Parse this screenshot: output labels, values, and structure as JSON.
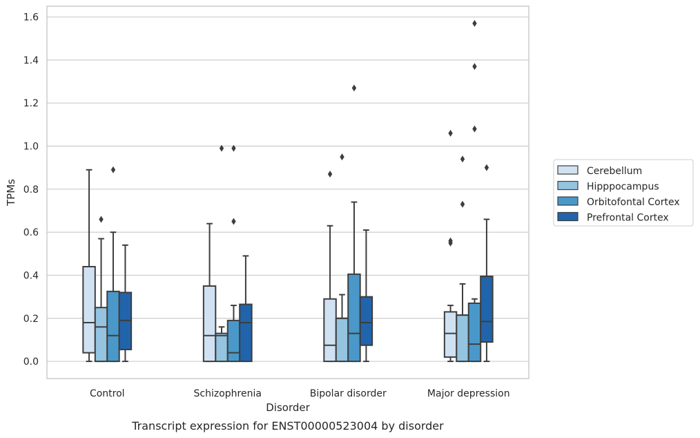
{
  "caption": "Transcript expression for ENST00000523004 by disorder",
  "chart_data": {
    "type": "box",
    "title": "",
    "xlabel": "Disorder",
    "ylabel": "TPMs",
    "ylim": [
      -0.08,
      1.65
    ],
    "yticks": [
      0.0,
      0.2,
      0.4,
      0.6,
      0.8,
      1.0,
      1.2,
      1.4,
      1.6
    ],
    "ytick_labels": [
      "0.0",
      "0.2",
      "0.4",
      "0.6",
      "0.8",
      "1.0",
      "1.2",
      "1.4",
      "1.6"
    ],
    "grid": "horizontal",
    "legend_position": "right",
    "categories": [
      "Control",
      "Schizophrenia",
      "Bipolar disorder",
      "Major depression"
    ],
    "series": [
      {
        "name": "Cerebellum",
        "color": "#d0e1f2",
        "boxes": [
          {
            "whislo": 0.0,
            "q1": 0.04,
            "med": 0.18,
            "q3": 0.44,
            "whishi": 0.89,
            "fliers": []
          },
          {
            "whislo": 0.0,
            "q1": 0.0,
            "med": 0.12,
            "q3": 0.35,
            "whishi": 0.64,
            "fliers": []
          },
          {
            "whislo": 0.0,
            "q1": 0.0,
            "med": 0.075,
            "q3": 0.29,
            "whishi": 0.63,
            "fliers": [
              0.87
            ]
          },
          {
            "whislo": 0.0,
            "q1": 0.02,
            "med": 0.13,
            "q3": 0.23,
            "whishi": 0.26,
            "fliers": [
              0.55,
              0.56,
              1.06
            ]
          }
        ]
      },
      {
        "name": "Hipppocampus",
        "color": "#94c4df",
        "boxes": [
          {
            "whislo": 0.0,
            "q1": 0.0,
            "med": 0.16,
            "q3": 0.25,
            "whishi": 0.57,
            "fliers": [
              0.66
            ]
          },
          {
            "whislo": 0.0,
            "q1": 0.0,
            "med": 0.12,
            "q3": 0.13,
            "whishi": 0.16,
            "fliers": [
              0.99
            ]
          },
          {
            "whislo": 0.0,
            "q1": 0.0,
            "med": 0.2,
            "q3": 0.2,
            "whishi": 0.31,
            "fliers": [
              0.95
            ]
          },
          {
            "whislo": 0.0,
            "q1": 0.0,
            "med": 0.215,
            "q3": 0.215,
            "whishi": 0.36,
            "fliers": [
              0.73,
              0.94
            ]
          }
        ]
      },
      {
        "name": "Orbitofontal Cortex",
        "color": "#4a98c9",
        "boxes": [
          {
            "whislo": 0.0,
            "q1": 0.0,
            "med": 0.12,
            "q3": 0.325,
            "whishi": 0.6,
            "fliers": [
              0.89
            ]
          },
          {
            "whislo": 0.0,
            "q1": 0.0,
            "med": 0.04,
            "q3": 0.19,
            "whishi": 0.26,
            "fliers": [
              0.65,
              0.99
            ]
          },
          {
            "whislo": 0.0,
            "q1": 0.0,
            "med": 0.13,
            "q3": 0.405,
            "whishi": 0.74,
            "fliers": [
              1.27
            ]
          },
          {
            "whislo": 0.0,
            "q1": 0.0,
            "med": 0.08,
            "q3": 0.27,
            "whishi": 0.29,
            "fliers": [
              1.08,
              1.37,
              1.57
            ]
          }
        ]
      },
      {
        "name": "Prefrontal Cortex",
        "color": "#2164ab",
        "boxes": [
          {
            "whislo": 0.0,
            "q1": 0.055,
            "med": 0.19,
            "q3": 0.32,
            "whishi": 0.54,
            "fliers": []
          },
          {
            "whislo": 0.0,
            "q1": 0.0,
            "med": 0.18,
            "q3": 0.265,
            "whishi": 0.49,
            "fliers": []
          },
          {
            "whislo": 0.0,
            "q1": 0.075,
            "med": 0.18,
            "q3": 0.3,
            "whishi": 0.61,
            "fliers": []
          },
          {
            "whislo": 0.0,
            "q1": 0.09,
            "med": 0.185,
            "q3": 0.395,
            "whishi": 0.66,
            "fliers": [
              0.9
            ]
          }
        ]
      }
    ]
  }
}
